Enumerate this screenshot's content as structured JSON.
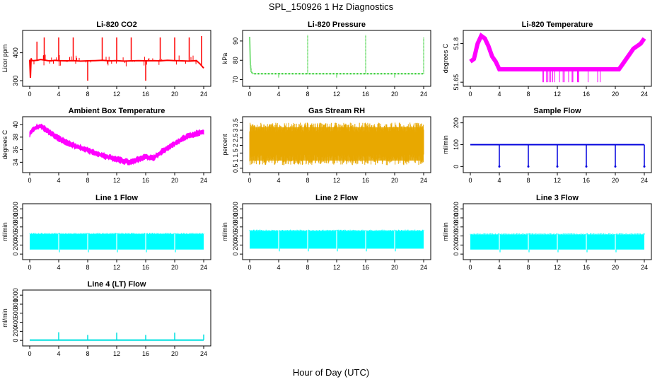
{
  "figure": {
    "title": "SPL_150926  1 Hz Diagnostics",
    "xlabel": "Hour of Day (UTC)"
  },
  "chart_data": [
    {
      "type": "line",
      "title": "Li-820 CO2",
      "xlabel": "",
      "ylabel": "Licor ppm",
      "xlim": [
        0,
        24
      ],
      "ylim": [
        290,
        470
      ],
      "xticks": [
        0,
        4,
        8,
        12,
        16,
        20,
        24
      ],
      "yticks": [
        300,
        400
      ],
      "color": "#ff0000",
      "style": "line",
      "x": [
        0,
        0.1,
        0.2,
        0.3,
        0.5,
        1,
        1.5,
        2,
        2.5,
        3,
        3.5,
        4,
        5,
        6,
        7,
        8,
        9,
        10,
        11,
        12,
        13,
        14,
        15,
        16,
        17,
        18,
        19,
        20,
        21,
        22,
        23,
        23.5,
        24
      ],
      "y": [
        375,
        310,
        380,
        372,
        372,
        373,
        376,
        374,
        372,
        371,
        373,
        372,
        371,
        372,
        370,
        371,
        372,
        373,
        371,
        372,
        370,
        371,
        372,
        371,
        372,
        371,
        373,
        372,
        371,
        370,
        372,
        360,
        345
      ],
      "spikes": [
        {
          "x": 1,
          "y": 440
        },
        {
          "x": 2,
          "y": 455
        },
        {
          "x": 4,
          "y": 455
        },
        {
          "x": 6,
          "y": 455
        },
        {
          "x": 8,
          "y": 300
        },
        {
          "x": 10,
          "y": 455
        },
        {
          "x": 12,
          "y": 455
        },
        {
          "x": 14,
          "y": 455
        },
        {
          "x": 16,
          "y": 300
        },
        {
          "x": 18,
          "y": 455
        },
        {
          "x": 20,
          "y": 455
        },
        {
          "x": 22,
          "y": 455
        },
        {
          "x": 23.7,
          "y": 460
        }
      ]
    },
    {
      "type": "line",
      "title": "Li-820 Pressure",
      "xlabel": "",
      "ylabel": "kPa",
      "xlim": [
        0,
        24
      ],
      "ylim": [
        68,
        94
      ],
      "xticks": [
        0,
        4,
        8,
        12,
        16,
        20,
        24
      ],
      "yticks": [
        70,
        80,
        90
      ],
      "color": "#00c000",
      "style": "dots",
      "x": [
        0,
        0.05,
        0.1,
        0.2,
        0.5,
        1,
        2,
        4,
        6,
        8,
        10,
        12,
        14,
        16,
        18,
        20,
        22,
        24
      ],
      "y": [
        92,
        85,
        78,
        74,
        73,
        73,
        73,
        73,
        73,
        73,
        73,
        73,
        73,
        73,
        73,
        73,
        73,
        73
      ],
      "spikes": [
        {
          "x": 4,
          "y": 71
        },
        {
          "x": 8,
          "y": 93
        },
        {
          "x": 12,
          "y": 71
        },
        {
          "x": 16,
          "y": 93
        },
        {
          "x": 20,
          "y": 71
        },
        {
          "x": 24,
          "y": 92
        }
      ]
    },
    {
      "type": "line",
      "title": "Li-820 Temperature",
      "xlabel": "",
      "ylabel": "degrees C",
      "xlim": [
        0,
        24
      ],
      "ylim": [
        51.645,
        51.84
      ],
      "xticks": [
        0,
        4,
        8,
        12,
        16,
        20,
        24
      ],
      "yticks": [
        51.65,
        51.8
      ],
      "color": "#ff00ff",
      "style": "squares",
      "x": [
        0,
        0.5,
        1,
        1.5,
        2,
        2.5,
        3,
        3.5,
        4,
        6,
        8,
        10,
        12,
        14,
        16,
        18,
        20,
        20.5,
        21,
        21.5,
        22,
        22.5,
        23,
        23.5,
        24
      ],
      "y": [
        51.73,
        51.74,
        51.8,
        51.83,
        51.82,
        51.79,
        51.75,
        51.73,
        51.7,
        51.7,
        51.7,
        51.7,
        51.7,
        51.7,
        51.7,
        51.7,
        51.7,
        51.7,
        51.72,
        51.74,
        51.76,
        51.78,
        51.79,
        51.8,
        51.82
      ]
    },
    {
      "type": "area",
      "title": "Ambient Box Temperature",
      "xlabel": "",
      "ylabel": "degrees C",
      "xlim": [
        0,
        24
      ],
      "ylim": [
        32.8,
        40.8
      ],
      "xticks": [
        0,
        4,
        8,
        12,
        16,
        20,
        24
      ],
      "yticks": [
        34,
        36,
        38,
        40
      ],
      "color": "#ff00ff",
      "x": [
        0,
        0.5,
        1,
        1.5,
        2,
        3,
        4,
        5,
        6,
        7,
        8,
        9,
        10,
        11,
        12,
        13,
        14,
        15,
        16,
        17,
        18,
        19,
        20,
        21,
        22,
        23,
        24
      ],
      "y": [
        38.5,
        39.2,
        39.6,
        39.8,
        39.4,
        38.5,
        37.8,
        37.2,
        36.7,
        36.3,
        35.9,
        35.5,
        35.1,
        34.8,
        34.5,
        34.2,
        34.0,
        34.5,
        34.9,
        34.6,
        35.5,
        36.3,
        37.0,
        37.7,
        38.2,
        38.6,
        38.9
      ],
      "band": 0.7
    },
    {
      "type": "area",
      "title": "Gas Stream RH",
      "xlabel": "",
      "ylabel": "percent",
      "xlim": [
        0,
        24
      ],
      "ylim": [
        0.4,
        3.7
      ],
      "xticks": [
        0,
        4,
        8,
        12,
        16,
        20,
        24
      ],
      "yticks": [
        0.5,
        1.0,
        1.5,
        2.0,
        2.5,
        3.0,
        3.5
      ],
      "color": "#e8a800",
      "x": [
        0,
        24
      ],
      "y": [
        2.1,
        2.1
      ],
      "lower": 0.7,
      "upper": 3.5
    },
    {
      "type": "line",
      "title": "Sample Flow",
      "xlabel": "",
      "ylabel": "ml/min",
      "xlim": [
        0,
        24
      ],
      "ylim": [
        -15,
        215
      ],
      "xticks": [
        0,
        4,
        8,
        12,
        16,
        20,
        24
      ],
      "yticks": [
        0,
        100,
        200
      ],
      "color": "#0000dd",
      "style": "line",
      "x": [
        0,
        4,
        8,
        12,
        16,
        20,
        24
      ],
      "y": [
        100,
        100,
        100,
        100,
        100,
        100,
        100
      ],
      "spikes": [
        {
          "x": 4,
          "y": 0
        },
        {
          "x": 8,
          "y": 0
        },
        {
          "x": 12,
          "y": 0
        },
        {
          "x": 16,
          "y": 0
        },
        {
          "x": 20,
          "y": 0
        },
        {
          "x": 24,
          "y": 0
        }
      ]
    },
    {
      "type": "area",
      "title": "Line 1 Flow",
      "xlabel": "",
      "ylabel": "ml/min",
      "xlim": [
        0,
        24
      ],
      "ylim": [
        -60,
        1050
      ],
      "xticks": [
        0,
        4,
        8,
        12,
        16,
        20,
        24
      ],
      "yticks": [
        0,
        200,
        400,
        600,
        800,
        1000
      ],
      "color": "#00ffff",
      "x": [
        0,
        24
      ],
      "y": [
        280,
        280
      ],
      "lower": 100,
      "upper": 440,
      "gaps": [
        4,
        8,
        12,
        16,
        20
      ]
    },
    {
      "type": "area",
      "title": "Line 2 Flow",
      "xlabel": "",
      "ylabel": "ml/min",
      "xlim": [
        0,
        24
      ],
      "ylim": [
        -60,
        1050
      ],
      "xticks": [
        0,
        4,
        8,
        12,
        16,
        20,
        24
      ],
      "yticks": [
        0,
        200,
        400,
        600,
        800,
        1000
      ],
      "color": "#00ffff",
      "x": [
        0,
        24
      ],
      "y": [
        340,
        340
      ],
      "lower": 120,
      "upper": 510,
      "gaps": [
        4,
        8,
        12,
        16,
        20
      ]
    },
    {
      "type": "area",
      "title": "Line 3 Flow",
      "xlabel": "",
      "ylabel": "ml/min",
      "xlim": [
        0,
        24
      ],
      "ylim": [
        -60,
        1050
      ],
      "xticks": [
        0,
        4,
        8,
        12,
        16,
        20,
        24
      ],
      "yticks": [
        0,
        200,
        400,
        600,
        800,
        1000
      ],
      "color": "#00ffff",
      "x": [
        0,
        24
      ],
      "y": [
        280,
        280
      ],
      "lower": 100,
      "upper": 430,
      "gaps": [
        4,
        8,
        12,
        16,
        20
      ]
    },
    {
      "type": "line",
      "title": "Line 4 (LT) Flow",
      "xlabel": "",
      "ylabel": "ml/min",
      "xlim": [
        0,
        24
      ],
      "ylim": [
        -60,
        1050
      ],
      "xticks": [
        0,
        4,
        8,
        12,
        16,
        20,
        24
      ],
      "yticks": [
        0,
        200,
        400,
        600,
        800,
        1000
      ],
      "color": "#00e0e0",
      "style": "line",
      "x": [
        0,
        24
      ],
      "y": [
        8,
        8
      ],
      "spikes": [
        {
          "x": 4,
          "y": 180
        },
        {
          "x": 8,
          "y": 120
        },
        {
          "x": 12,
          "y": 170
        },
        {
          "x": 16,
          "y": 120
        },
        {
          "x": 20,
          "y": 170
        },
        {
          "x": 24,
          "y": 130
        }
      ]
    }
  ]
}
